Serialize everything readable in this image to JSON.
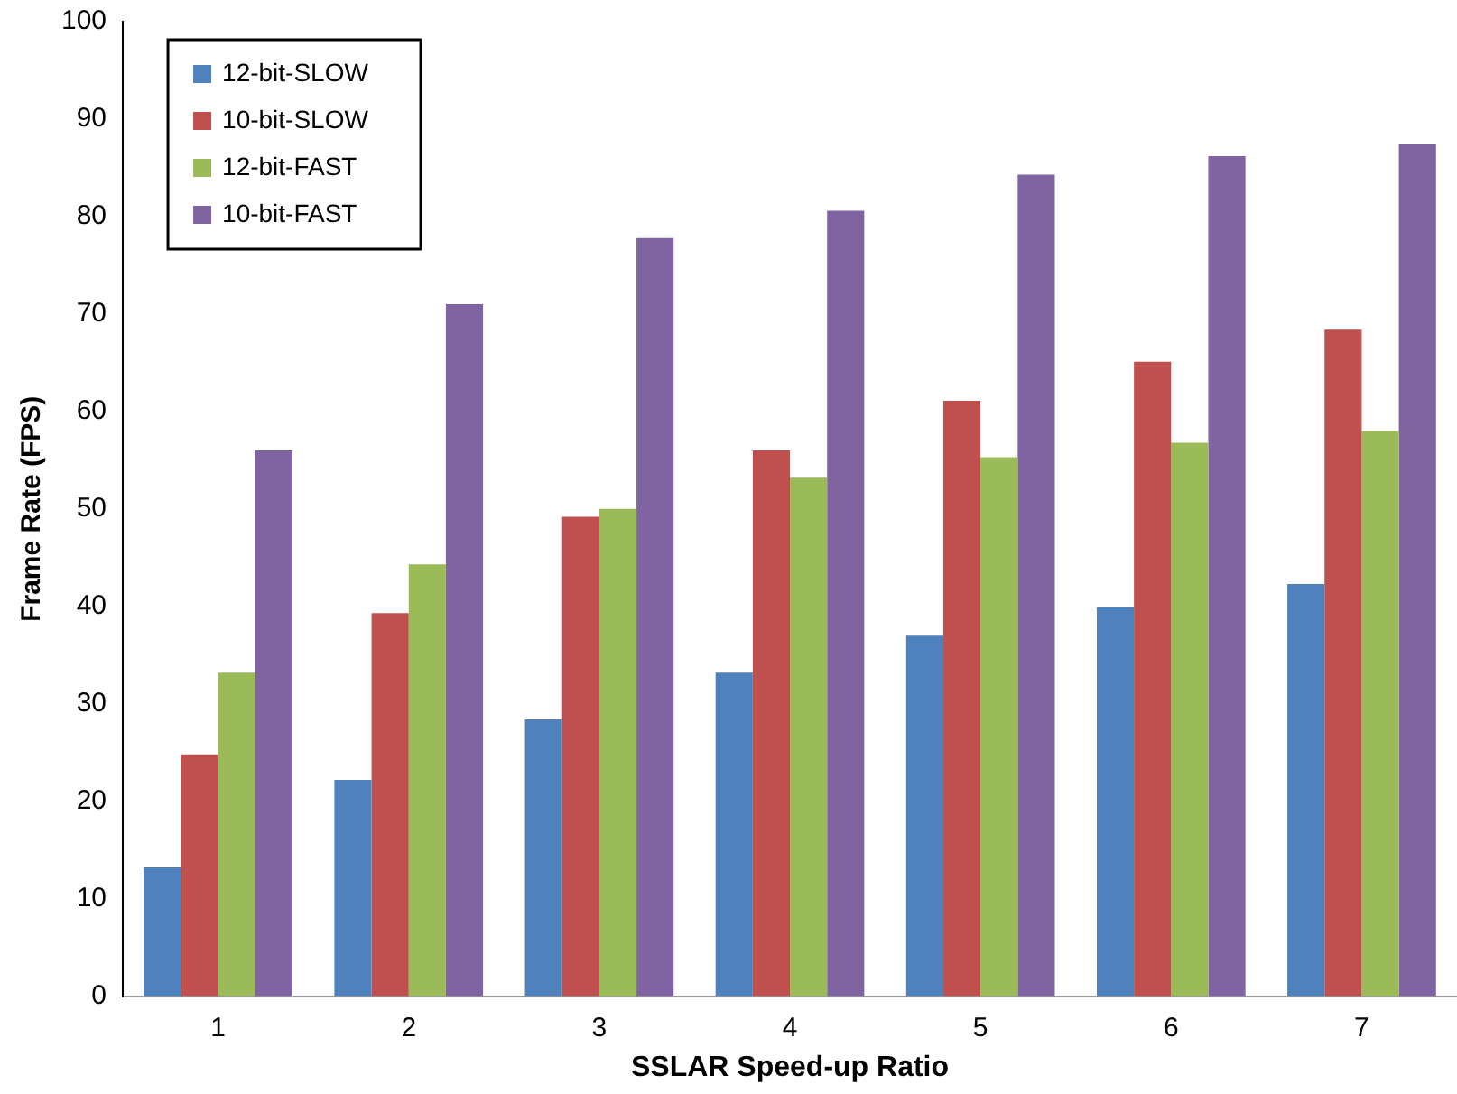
{
  "chart_data": {
    "type": "bar",
    "xlabel": "SSLAR Speed-up Ratio",
    "ylabel": "Frame Rate (FPS)",
    "categories": [
      "1",
      "2",
      "3",
      "4",
      "5",
      "6",
      "7"
    ],
    "series": [
      {
        "name": "12-bit-SLOW",
        "color": "#4f81bd",
        "values": [
          13.2,
          22.2,
          28.4,
          33.2,
          37,
          39.9,
          42.3
        ]
      },
      {
        "name": "10-bit-SLOW",
        "color": "#c0504d",
        "values": [
          24.8,
          39.3,
          49.2,
          56,
          61.1,
          65.1,
          68.4
        ]
      },
      {
        "name": "12-bit-FAST",
        "color": "#9bbb59",
        "values": [
          33.2,
          44.3,
          50,
          53.2,
          55.3,
          56.8,
          58
        ]
      },
      {
        "name": "10-bit-FAST",
        "color": "#8064a2",
        "values": [
          56,
          71,
          77.8,
          80.6,
          84.3,
          86.2,
          87.4
        ]
      }
    ],
    "ylim": [
      0,
      100
    ],
    "yticks": [
      0,
      10,
      20,
      30,
      40,
      50,
      60,
      70,
      80,
      90,
      100
    ],
    "grid": false,
    "legend": "top left"
  }
}
